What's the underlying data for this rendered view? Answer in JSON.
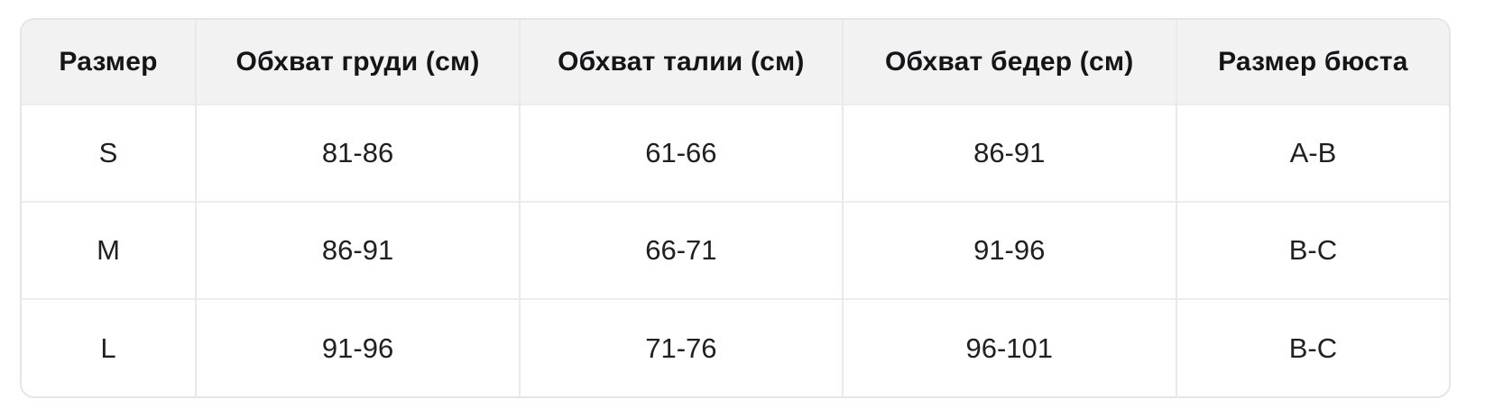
{
  "chart_data": {
    "type": "table",
    "columns": [
      "Размер",
      "Обхват груди (см)",
      "Обхват талии (см)",
      "Обхват бедер (см)",
      "Размер бюста"
    ],
    "rows": [
      [
        "S",
        "81-86",
        "61-66",
        "86-91",
        "A-B"
      ],
      [
        "M",
        "86-91",
        "66-71",
        "91-96",
        "B-C"
      ],
      [
        "L",
        "91-96",
        "71-76",
        "96-101",
        "B-C"
      ]
    ],
    "title": "",
    "layout_hints": {
      "header_position": "top",
      "alignment": "center",
      "grid": "on",
      "rounded_corners": true
    }
  },
  "colors": {
    "header_bg": "#f2f2f3",
    "outer_border": "#e5e5e6",
    "cell_divider": "#e9e9ea",
    "row_divider": "#ececed",
    "header_text": "#151517",
    "body_text": "#202022",
    "body_bg": "#ffffff"
  }
}
